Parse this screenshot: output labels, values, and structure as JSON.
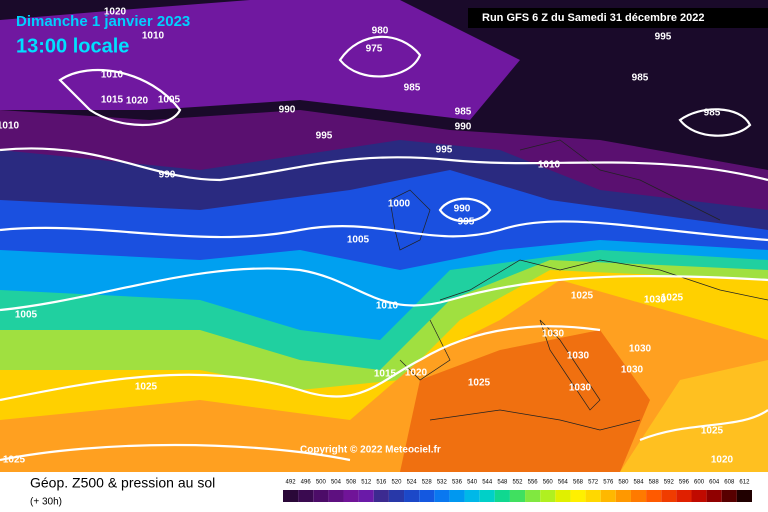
{
  "header": {
    "date": "Dimanche 1 janvier 2023",
    "time": "13:00 locale",
    "run": "Run GFS 6 Z du Samedi 31 décembre 2022"
  },
  "isobar_labels": [
    "1020",
    "1010",
    "980",
    "975",
    "995",
    "1010",
    "1015",
    "1020",
    "1005",
    "1010",
    "985",
    "985",
    "990",
    "985",
    "990",
    "985",
    "995",
    "995",
    "990",
    "1010",
    "1000",
    "990",
    "995",
    "1005",
    "1025",
    "1030",
    "1025",
    "1005",
    "1010",
    "1030",
    "1030",
    "1030",
    "1030",
    "1015",
    "1020",
    "1025",
    "1030",
    "1025",
    "1025",
    "1025",
    "1020"
  ],
  "copyright": "Copyright © 2022 Meteociel.fr",
  "footer": {
    "title": "Géop. Z500 & pression au sol",
    "lead": "(+ 30h)"
  },
  "legend": {
    "values": [
      492,
      496,
      500,
      504,
      508,
      512,
      516,
      520,
      524,
      528,
      532,
      536,
      540,
      544,
      548,
      552,
      556,
      560,
      564,
      568,
      572,
      576,
      580,
      584,
      588,
      592,
      596,
      600,
      604,
      608,
      612
    ],
    "colors": [
      "#2a0838",
      "#3a0a50",
      "#4c0c68",
      "#5e1080",
      "#701498",
      "#6a1aa8",
      "#3c2a90",
      "#2838a8",
      "#1c48c8",
      "#1458e0",
      "#0a78f0",
      "#0098f0",
      "#00b8e8",
      "#00d0c8",
      "#10d890",
      "#40e060",
      "#80e840",
      "#b0f020",
      "#e0f000",
      "#fff000",
      "#ffd800",
      "#ffb800",
      "#ff9800",
      "#ff7a00",
      "#ff5a00",
      "#f03c00",
      "#e02000",
      "#c00a00",
      "#900000",
      "#580000",
      "#200000"
    ]
  }
}
